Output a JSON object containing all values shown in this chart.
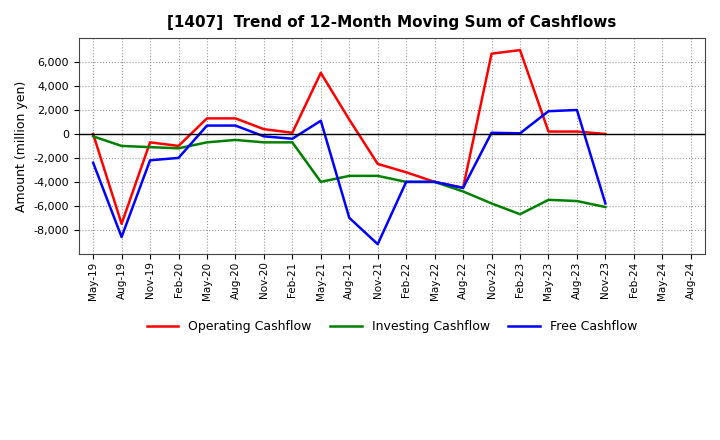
{
  "title": "[1407]  Trend of 12-Month Moving Sum of Cashflows",
  "ylabel": "Amount (million yen)",
  "xlabels": [
    "May-19",
    "Aug-19",
    "Nov-19",
    "Feb-20",
    "May-20",
    "Aug-20",
    "Nov-20",
    "Feb-21",
    "May-21",
    "Aug-21",
    "Nov-21",
    "Feb-22",
    "May-22",
    "Aug-22",
    "Nov-22",
    "Feb-23",
    "May-23",
    "Aug-23",
    "Nov-23",
    "Feb-24",
    "May-24",
    "Aug-24"
  ],
  "operating": [
    0,
    -7500,
    -700,
    -1000,
    1300,
    1300,
    400,
    100,
    5100,
    1200,
    -2500,
    -3200,
    -4000,
    -4500,
    6700,
    7000,
    200,
    200,
    0,
    null,
    null,
    null
  ],
  "investing": [
    -200,
    -1000,
    -1100,
    -1200,
    -700,
    -500,
    -700,
    -700,
    -4000,
    -3500,
    -3500,
    -4000,
    -4000,
    -4800,
    -5800,
    -6700,
    -5500,
    -5600,
    -6100,
    null,
    null,
    null
  ],
  "free": [
    -2400,
    -8600,
    -2200,
    -2000,
    700,
    700,
    -200,
    -400,
    1100,
    -7000,
    -9200,
    -4000,
    -4000,
    -4500,
    100,
    50,
    1900,
    2000,
    -5800,
    null,
    null,
    null
  ],
  "operating_color": "#ff0000",
  "investing_color": "#008000",
  "free_color": "#0000ff",
  "ylim": [
    -10000,
    8000
  ],
  "yticks": [
    -8000,
    -6000,
    -4000,
    -2000,
    0,
    2000,
    4000,
    6000
  ],
  "legend_labels": [
    "Operating Cashflow",
    "Investing Cashflow",
    "Free Cashflow"
  ],
  "background_color": "#ffffff",
  "grid_color": "#999999"
}
